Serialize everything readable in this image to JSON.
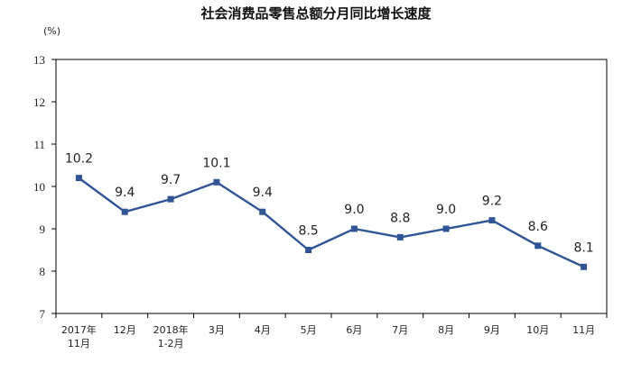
{
  "chart_data": {
    "type": "line",
    "title": "社会消费品零售总额分月同比增长速度",
    "unit": "(%)",
    "categories": [
      [
        "2017年",
        "11月"
      ],
      [
        "12月"
      ],
      [
        "2018年",
        "1-2月"
      ],
      [
        "3月"
      ],
      [
        "4月"
      ],
      [
        "5月"
      ],
      [
        "6月"
      ],
      [
        "7月"
      ],
      [
        "8月"
      ],
      [
        "9月"
      ],
      [
        "10月"
      ],
      [
        "11月"
      ]
    ],
    "values": [
      10.2,
      9.4,
      9.7,
      10.1,
      9.4,
      8.5,
      9.0,
      8.8,
      9.0,
      9.2,
      8.6,
      8.1
    ],
    "value_labels": [
      "10.2",
      "9.4",
      "9.7",
      "10.1",
      "9.4",
      "8.5",
      "9.0",
      "8.8",
      "9.0",
      "9.2",
      "8.6",
      "8.1"
    ],
    "ylim": [
      7,
      13
    ],
    "yticks": [
      7,
      8,
      9,
      10,
      11,
      12,
      13
    ],
    "ytick_labels": [
      "7",
      "8",
      "9",
      "10",
      "11",
      "12",
      "13"
    ],
    "grid": false,
    "legend": "none",
    "colors": {
      "line": "#2f5597",
      "marker": "#2f5597",
      "frame": "#000000"
    }
  }
}
